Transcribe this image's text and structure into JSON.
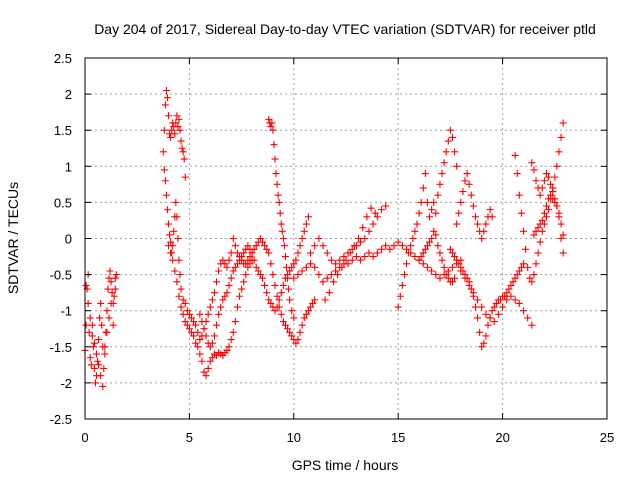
{
  "chart_data": {
    "type": "scatter",
    "title": "Day 204 of 2017, Sidereal Day-to-day VTEC variation (SDTVAR) for receiver ptld",
    "xlabel": "GPS time / hours",
    "ylabel": "SDTVAR / TECUs",
    "xlim": [
      0,
      25
    ],
    "ylim": [
      -2.5,
      2.5
    ],
    "xticks": [
      0,
      5,
      10,
      15,
      20,
      25
    ],
    "yticks": [
      -2.5,
      -2,
      -1.5,
      -1,
      -0.5,
      0,
      0.5,
      1,
      1.5,
      2,
      2.5
    ],
    "xtick_labels": [
      "0",
      "5",
      "10",
      "15",
      "20",
      "25"
    ],
    "ytick_labels": [
      "-2.5",
      "-2",
      "-1.5",
      "-1",
      "-0.5",
      "0",
      "0.5",
      "1",
      "1.5",
      "2",
      "2.5"
    ],
    "grid": true,
    "marker": "+",
    "color": "#ff0000",
    "series": [
      {
        "name": "s1",
        "x": [
          0.0,
          0.05,
          0.1,
          0.15,
          0.2,
          0.25,
          0.3,
          0.35,
          0.4,
          0.45,
          0.5,
          0.55,
          0.6,
          0.65,
          0.7,
          0.75,
          0.8,
          0.85,
          0.9,
          0.95,
          1.0,
          1.05,
          1.1,
          1.15,
          1.2,
          1.25,
          1.3,
          1.35,
          1.4,
          1.45,
          1.5
        ],
        "y": [
          -1.55,
          -1.2,
          -0.7,
          -0.5,
          -1.3,
          -1.65,
          -1.75,
          -1.2,
          -1.5,
          -1.8,
          -2.0,
          -1.9,
          -1.7,
          -1.4,
          -1.1,
          -0.9,
          -1.2,
          -1.5,
          -1.8,
          -1.6,
          -1.3,
          -1.0,
          -0.7,
          -0.55,
          -0.45,
          -0.6,
          -0.75,
          -0.9,
          -0.8,
          -0.55,
          -0.5
        ]
      },
      {
        "name": "s2",
        "x": [
          0.05,
          0.15,
          0.25,
          0.35,
          0.45,
          0.55,
          0.65,
          0.75,
          0.85,
          0.95,
          1.05,
          1.15,
          1.25,
          1.35,
          1.45
        ],
        "y": [
          -0.65,
          -0.9,
          -1.1,
          -1.35,
          -1.45,
          -1.6,
          -1.75,
          -1.9,
          -2.05,
          -1.5,
          -1.3,
          -1.1,
          -0.9,
          -1.2,
          -0.7
        ]
      },
      {
        "name": "s3",
        "x": [
          3.75,
          3.8,
          3.85,
          3.9,
          3.95,
          4.0,
          4.05,
          4.1,
          4.15,
          4.2,
          4.25,
          4.3,
          4.35,
          4.4,
          4.45,
          4.5,
          4.55,
          4.6,
          4.65,
          4.7,
          4.75,
          4.8
        ],
        "y": [
          1.2,
          1.5,
          1.85,
          2.05,
          1.95,
          1.7,
          1.45,
          1.4,
          1.5,
          1.6,
          1.55,
          1.45,
          1.6,
          1.7,
          1.55,
          1.65,
          1.5,
          1.35,
          1.25,
          1.2,
          1.1,
          0.85
        ]
      },
      {
        "name": "s4",
        "x": [
          3.8,
          3.85,
          3.9,
          3.95,
          4.0,
          4.05,
          4.1,
          4.15,
          4.2,
          4.25,
          4.3,
          4.35,
          4.4,
          4.45,
          4.5,
          4.55,
          4.6,
          4.7,
          4.8,
          4.9,
          5.0,
          5.1,
          5.2,
          5.3,
          5.4,
          5.5,
          5.6,
          5.7,
          5.8,
          5.9,
          6.0,
          6.1,
          6.2,
          6.3,
          6.4,
          6.5,
          6.6,
          6.7,
          6.8,
          6.9,
          7.0,
          7.1,
          7.2,
          7.3,
          7.4,
          7.5,
          7.6,
          7.7,
          7.8,
          7.9,
          8.0,
          8.1,
          8.2,
          8.3,
          8.4,
          8.5,
          8.6,
          8.7,
          8.8,
          8.9,
          9.0,
          9.1,
          9.2,
          9.3,
          9.4,
          9.5,
          9.6,
          9.7,
          9.8,
          9.9,
          10.0,
          10.1,
          10.2,
          10.3,
          10.4,
          10.5,
          10.6,
          10.7
        ],
        "y": [
          0.95,
          0.8,
          0.6,
          0.4,
          0.2,
          0.05,
          -0.05,
          -0.2,
          -0.1,
          0.1,
          0.3,
          0.5,
          0.3,
          0.0,
          -0.3,
          -0.5,
          -0.7,
          -0.85,
          -0.9,
          -1.0,
          -1.05,
          -1.1,
          -1.15,
          -1.2,
          -1.3,
          -1.4,
          -1.35,
          -1.25,
          -1.15,
          -1.05,
          -0.95,
          -0.85,
          -0.75,
          -0.6,
          -0.45,
          -0.35,
          -0.3,
          -0.35,
          -0.4,
          -0.3,
          -0.2,
          0.0,
          -0.1,
          -0.2,
          -0.25,
          -0.3,
          -0.35,
          -0.35,
          -0.3,
          -0.25,
          -0.2,
          -0.3,
          -0.4,
          -0.45,
          -0.5,
          -0.55,
          -0.65,
          -0.75,
          -0.85,
          -0.9,
          -0.95,
          -1.0,
          -0.95,
          -0.85,
          -0.75,
          -0.65,
          -0.55,
          -0.5,
          -0.45,
          -0.4,
          -0.35,
          -0.3,
          -0.2,
          -0.1,
          0.0,
          0.1,
          0.2,
          0.3
        ]
      },
      {
        "name": "s5",
        "x": [
          4.0,
          4.1,
          4.2,
          4.3,
          4.4,
          4.5,
          4.6,
          4.7,
          4.8,
          4.9,
          5.0,
          5.1,
          5.2,
          5.3,
          5.4,
          5.5,
          5.6,
          5.7,
          5.8,
          5.9,
          6.0,
          6.1,
          6.2,
          6.3,
          6.4,
          6.5,
          6.6,
          6.7,
          6.8,
          6.9,
          7.0,
          7.1,
          7.2,
          7.3,
          7.4,
          7.5,
          7.6,
          7.7,
          7.8,
          7.9,
          8.0
        ],
        "y": [
          -0.1,
          -0.2,
          -0.3,
          -0.45,
          -0.6,
          -0.8,
          -0.95,
          -1.05,
          -1.15,
          -1.2,
          -1.25,
          -1.3,
          -1.35,
          -1.45,
          -1.5,
          -1.6,
          -1.7,
          -1.85,
          -1.9,
          -1.8,
          -1.7,
          -1.65,
          -1.6,
          -1.62,
          -1.58,
          -1.6,
          -1.62,
          -1.58,
          -1.55,
          -1.5,
          -1.4,
          -1.3,
          -1.15,
          -0.95,
          -0.8,
          -0.7,
          -0.6,
          -0.5,
          -0.4,
          -0.35,
          -0.3
        ]
      },
      {
        "name": "s6",
        "x": [
          5.5,
          5.6,
          5.7,
          5.8,
          5.9,
          6.0,
          6.1,
          6.2,
          6.3,
          6.4,
          6.5,
          6.6,
          6.7,
          6.8,
          6.9,
          7.0,
          7.1,
          7.2,
          7.3,
          7.4,
          7.5,
          7.6,
          7.7,
          7.8,
          7.9,
          8.0,
          8.1,
          8.2,
          8.3,
          8.4,
          8.5,
          8.6,
          8.7,
          8.8
        ],
        "y": [
          -1.05,
          -1.15,
          -1.25,
          -1.35,
          -1.45,
          -1.5,
          -1.45,
          -1.35,
          -1.2,
          -1.05,
          -0.95,
          -0.85,
          -0.8,
          -0.75,
          -0.65,
          -0.55,
          -0.45,
          -0.4,
          -0.35,
          -0.3,
          -0.25,
          -0.2,
          -0.15,
          -0.1,
          -0.15,
          -0.2,
          -0.15,
          -0.1,
          -0.05,
          0.0,
          -0.05,
          -0.1,
          -0.15,
          -0.2
        ]
      },
      {
        "name": "s7",
        "x": [
          8.8,
          8.85,
          8.9,
          8.95,
          9.0,
          9.05,
          9.1,
          9.15,
          9.2,
          9.25,
          9.3,
          9.35,
          9.4,
          9.45,
          9.5,
          9.55,
          9.6,
          9.65,
          9.7,
          9.75,
          9.8,
          9.9,
          10.0
        ],
        "y": [
          1.65,
          1.6,
          1.55,
          1.6,
          1.5,
          1.3,
          1.1,
          0.9,
          0.75,
          0.6,
          0.5,
          0.35,
          0.2,
          0.1,
          0.0,
          -0.1,
          -0.25,
          -0.4,
          -0.55,
          -0.7,
          -0.85,
          -1.0,
          -1.1
        ]
      },
      {
        "name": "s8",
        "x": [
          8.9,
          9.0,
          9.1,
          9.2,
          9.3,
          9.4,
          9.5,
          9.6,
          9.7,
          9.8,
          9.9,
          10.0,
          10.1,
          10.2,
          10.3,
          10.4,
          10.5,
          10.6,
          10.7,
          10.8,
          10.9,
          11.0
        ],
        "y": [
          -0.35,
          -0.5,
          -0.65,
          -0.8,
          -0.95,
          -1.05,
          -1.15,
          -1.2,
          -1.25,
          -1.3,
          -1.35,
          -1.4,
          -1.45,
          -1.4,
          -1.3,
          -1.2,
          -1.1,
          -1.05,
          -1.0,
          -0.95,
          -0.9,
          -0.85
        ]
      },
      {
        "name": "s9",
        "x": [
          10.0,
          10.2,
          10.4,
          10.6,
          10.8,
          11.0,
          11.2,
          11.4,
          11.6,
          11.8,
          12.0,
          12.2,
          12.4,
          12.6,
          12.8,
          13.0,
          13.2,
          13.4,
          13.6,
          13.8,
          14.0,
          14.2,
          14.4,
          14.6,
          14.8,
          15.0,
          15.2,
          15.4,
          15.6,
          15.8,
          16.0,
          16.2,
          16.4,
          16.6,
          16.8,
          17.0,
          17.2,
          17.4,
          17.6,
          17.8,
          18.0
        ],
        "y": [
          -0.55,
          -0.5,
          -0.45,
          -0.4,
          -0.35,
          -0.4,
          -0.5,
          -0.6,
          -0.55,
          -0.5,
          -0.45,
          -0.4,
          -0.35,
          -0.35,
          -0.3,
          -0.25,
          -0.3,
          -0.25,
          -0.2,
          -0.25,
          -0.2,
          -0.15,
          -0.1,
          -0.15,
          -0.1,
          -0.05,
          -0.1,
          -0.15,
          -0.2,
          -0.25,
          -0.3,
          -0.35,
          -0.4,
          -0.45,
          -0.5,
          -0.55,
          -0.5,
          -0.45,
          -0.4,
          -0.35,
          -0.3
        ]
      },
      {
        "name": "s10",
        "x": [
          10.8,
          11.0,
          11.2,
          11.4,
          11.6,
          11.8,
          12.0,
          12.2,
          12.4,
          12.6,
          12.8,
          13.0,
          13.2,
          13.4,
          13.6,
          13.8,
          14.0,
          14.2,
          14.4
        ],
        "y": [
          -0.2,
          -0.1,
          0.0,
          -0.1,
          -0.2,
          -0.3,
          -0.35,
          -0.3,
          -0.25,
          -0.2,
          -0.15,
          -0.1,
          -0.05,
          0.0,
          0.1,
          0.2,
          0.3,
          0.4,
          0.45
        ]
      },
      {
        "name": "s11",
        "x": [
          11.5,
          11.7,
          11.9,
          12.1,
          12.3,
          12.5,
          12.7,
          12.9,
          13.1,
          13.3,
          13.5,
          13.7,
          13.9
        ],
        "y": [
          -0.85,
          -0.75,
          -0.6,
          -0.5,
          -0.4,
          -0.3,
          -0.2,
          -0.1,
          0.0,
          0.15,
          0.3,
          0.42,
          0.35
        ]
      },
      {
        "name": "s12",
        "x": [
          15.0,
          15.1,
          15.2,
          15.3,
          15.4,
          15.5,
          15.6,
          15.7,
          15.8,
          15.9,
          16.0,
          16.1,
          16.2,
          16.3,
          16.4,
          16.5,
          16.6,
          16.7,
          16.8,
          16.9,
          17.0,
          17.1,
          17.2,
          17.3,
          17.4,
          17.5,
          17.6,
          17.7,
          17.8
        ],
        "y": [
          -0.95,
          -0.8,
          -0.65,
          -0.5,
          -0.35,
          -0.2,
          -0.1,
          0.0,
          0.1,
          0.2,
          0.35,
          0.5,
          0.7,
          0.9,
          0.5,
          0.3,
          0.4,
          0.5,
          0.35,
          0.6,
          0.75,
          0.9,
          1.05,
          1.2,
          1.35,
          1.5,
          1.4,
          1.2,
          1.0
        ]
      },
      {
        "name": "s13",
        "x": [
          16.0,
          16.1,
          16.2,
          16.3,
          16.4,
          16.5,
          16.6,
          16.7,
          16.8,
          16.9,
          17.0,
          17.1,
          17.2,
          17.3,
          17.4,
          17.5,
          17.6,
          17.7
        ],
        "y": [
          -0.3,
          -0.25,
          -0.2,
          -0.15,
          -0.1,
          -0.05,
          0.0,
          0.1,
          0.05,
          -0.1,
          -0.2,
          -0.3,
          -0.4,
          -0.5,
          -0.55,
          -0.6,
          -0.6,
          -0.55
        ]
      },
      {
        "name": "s14",
        "x": [
          17.8,
          17.9,
          18.0,
          18.1,
          18.2,
          18.3,
          18.4,
          18.5,
          18.6,
          18.7,
          18.8,
          18.9,
          19.0,
          19.1,
          19.2,
          19.3,
          19.4,
          19.5
        ],
        "y": [
          0.2,
          0.35,
          0.5,
          0.65,
          0.8,
          0.9,
          0.75,
          0.6,
          0.45,
          0.3,
          0.2,
          0.1,
          0.0,
          0.1,
          0.2,
          0.3,
          0.4,
          0.3
        ]
      },
      {
        "name": "s15",
        "x": [
          17.5,
          17.6,
          17.7,
          17.8,
          17.9,
          18.0,
          18.1,
          18.2,
          18.3,
          18.4,
          18.5,
          18.6,
          18.7,
          18.8,
          18.9,
          19.0,
          19.1,
          19.2,
          19.3,
          19.4,
          19.5,
          19.6,
          19.7,
          19.8,
          19.9,
          20.0,
          20.1,
          20.2,
          20.3,
          20.4,
          20.5,
          20.6,
          20.7,
          20.8,
          20.9,
          21.0
        ],
        "y": [
          -0.15,
          -0.2,
          -0.25,
          -0.3,
          -0.35,
          -0.4,
          -0.45,
          -0.5,
          -0.55,
          -0.6,
          -0.7,
          -0.8,
          -0.95,
          -1.1,
          -1.3,
          -1.5,
          -1.45,
          -1.35,
          -1.2,
          -1.1,
          -1.0,
          -0.95,
          -0.9,
          -0.85,
          -0.85,
          -0.8,
          -0.8,
          -0.75,
          -0.7,
          -0.65,
          -0.6,
          -0.55,
          -0.5,
          -0.45,
          -0.4,
          -0.35
        ]
      },
      {
        "name": "s16",
        "x": [
          18.0,
          18.2,
          18.4,
          18.6,
          18.8,
          19.0,
          19.2,
          19.4,
          19.6,
          19.8,
          20.0,
          20.2,
          20.4,
          20.6,
          20.8,
          21.0,
          21.2,
          21.4
        ],
        "y": [
          -0.45,
          -0.55,
          -0.65,
          -0.75,
          -0.85,
          -0.95,
          -1.05,
          -1.1,
          -1.15,
          -1.05,
          -0.95,
          -0.85,
          -0.8,
          -0.85,
          -0.9,
          -1.0,
          -1.1,
          -1.2
        ]
      },
      {
        "name": "s17",
        "x": [
          20.6,
          20.7,
          20.8,
          20.9,
          21.0,
          21.1,
          21.2,
          21.3,
          21.4,
          21.5,
          21.6,
          21.7,
          21.8,
          21.9,
          22.0,
          22.1,
          22.2,
          22.3,
          22.4,
          22.5,
          22.6,
          22.7,
          22.8,
          22.9
        ],
        "y": [
          1.15,
          0.9,
          0.6,
          0.35,
          0.1,
          -0.15,
          -0.4,
          -0.55,
          -0.6,
          -0.5,
          -0.35,
          -0.2,
          -0.05,
          0.1,
          0.2,
          0.3,
          0.4,
          0.55,
          0.7,
          0.85,
          1.0,
          1.2,
          1.4,
          1.6
        ]
      },
      {
        "name": "s18",
        "x": [
          21.4,
          21.5,
          21.6,
          21.7,
          21.8,
          21.9,
          22.0,
          22.1,
          22.2,
          22.3,
          22.4,
          22.5,
          22.6,
          22.7,
          22.8,
          22.9
        ],
        "y": [
          1.05,
          0.95,
          0.8,
          0.7,
          0.6,
          0.7,
          0.8,
          0.9,
          0.85,
          0.75,
          0.65,
          0.55,
          0.45,
          0.35,
          0.2,
          0.05
        ]
      },
      {
        "name": "s19",
        "x": [
          21.5,
          21.6,
          21.7,
          21.8,
          21.9,
          22.0,
          22.1,
          22.2,
          22.3,
          22.4,
          22.5,
          22.6,
          22.7,
          22.8,
          22.9
        ],
        "y": [
          0.05,
          0.1,
          0.15,
          0.2,
          0.25,
          0.35,
          0.45,
          0.55,
          0.6,
          0.55,
          0.5,
          0.45,
          0.3,
          0.0,
          -0.2
        ]
      }
    ]
  }
}
